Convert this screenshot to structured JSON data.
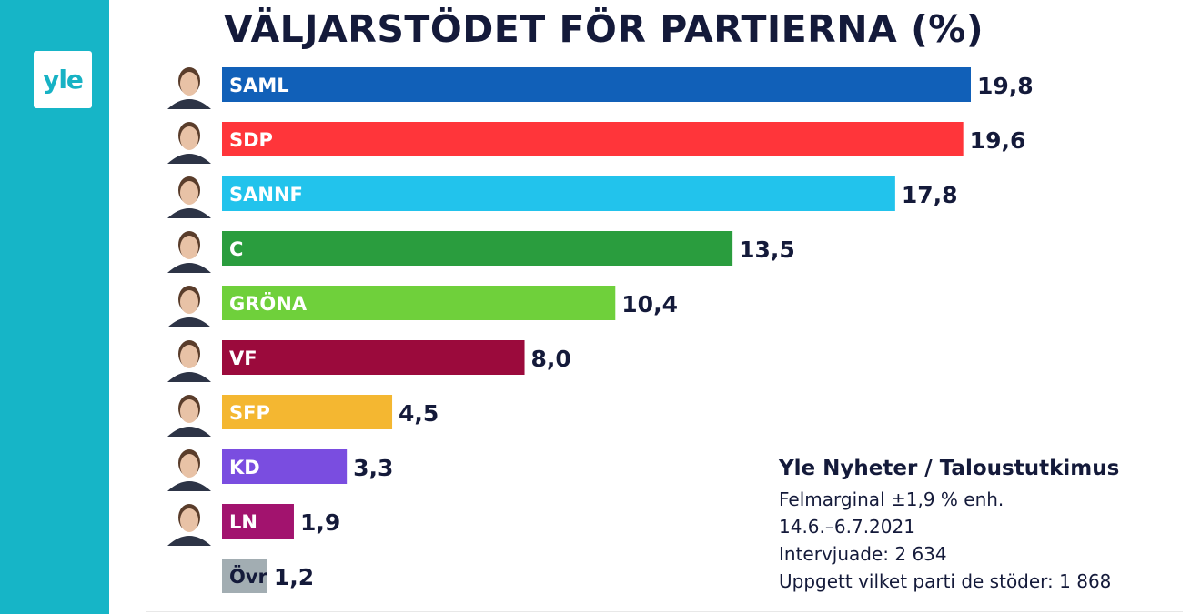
{
  "brand": {
    "logo_text": "yle",
    "sidebar_color": "#16b5c7"
  },
  "title": "VÄLJARSTÖDET FÖR PARTIERNA (%)",
  "source": {
    "title": "Yle Nyheter / Taloustutkimus",
    "lines": [
      "Felmarginal ±1,9 % enh.",
      "14.6.–6.7.2021",
      "Intervjuade: 2 634",
      "Uppgett vilket parti de stöder: 1 868"
    ]
  },
  "chart_data": {
    "type": "bar",
    "orientation": "horizontal",
    "title": "VÄLJARSTÖDET FÖR PARTIERNA (%)",
    "categories": [
      "SAML",
      "SDP",
      "SANNF",
      "C",
      "GRÖNA",
      "VF",
      "SFP",
      "KD",
      "LN",
      "Övr"
    ],
    "values": [
      19.8,
      19.6,
      17.8,
      13.5,
      10.4,
      8.0,
      4.5,
      3.3,
      1.9,
      1.2
    ],
    "value_labels": [
      "19,8",
      "19,6",
      "17,8",
      "13,5",
      "10,4",
      "8,0",
      "4,5",
      "3,3",
      "1,9",
      "1,2"
    ],
    "colors": [
      "#1160b8",
      "#ff353a",
      "#22c3ec",
      "#2a9d3e",
      "#6fd03b",
      "#9b0a3c",
      "#f4b731",
      "#7a4de0",
      "#a2136e",
      "#a2adb2"
    ],
    "label_colors": [
      "#ffffff",
      "#ffffff",
      "#ffffff",
      "#ffffff",
      "#ffffff",
      "#ffffff",
      "#ffffff",
      "#ffffff",
      "#ffffff",
      "#141a3a"
    ],
    "has_portrait": [
      true,
      true,
      true,
      true,
      true,
      true,
      true,
      true,
      true,
      false
    ],
    "xlim": [
      0,
      19.8
    ],
    "grid": false
  }
}
